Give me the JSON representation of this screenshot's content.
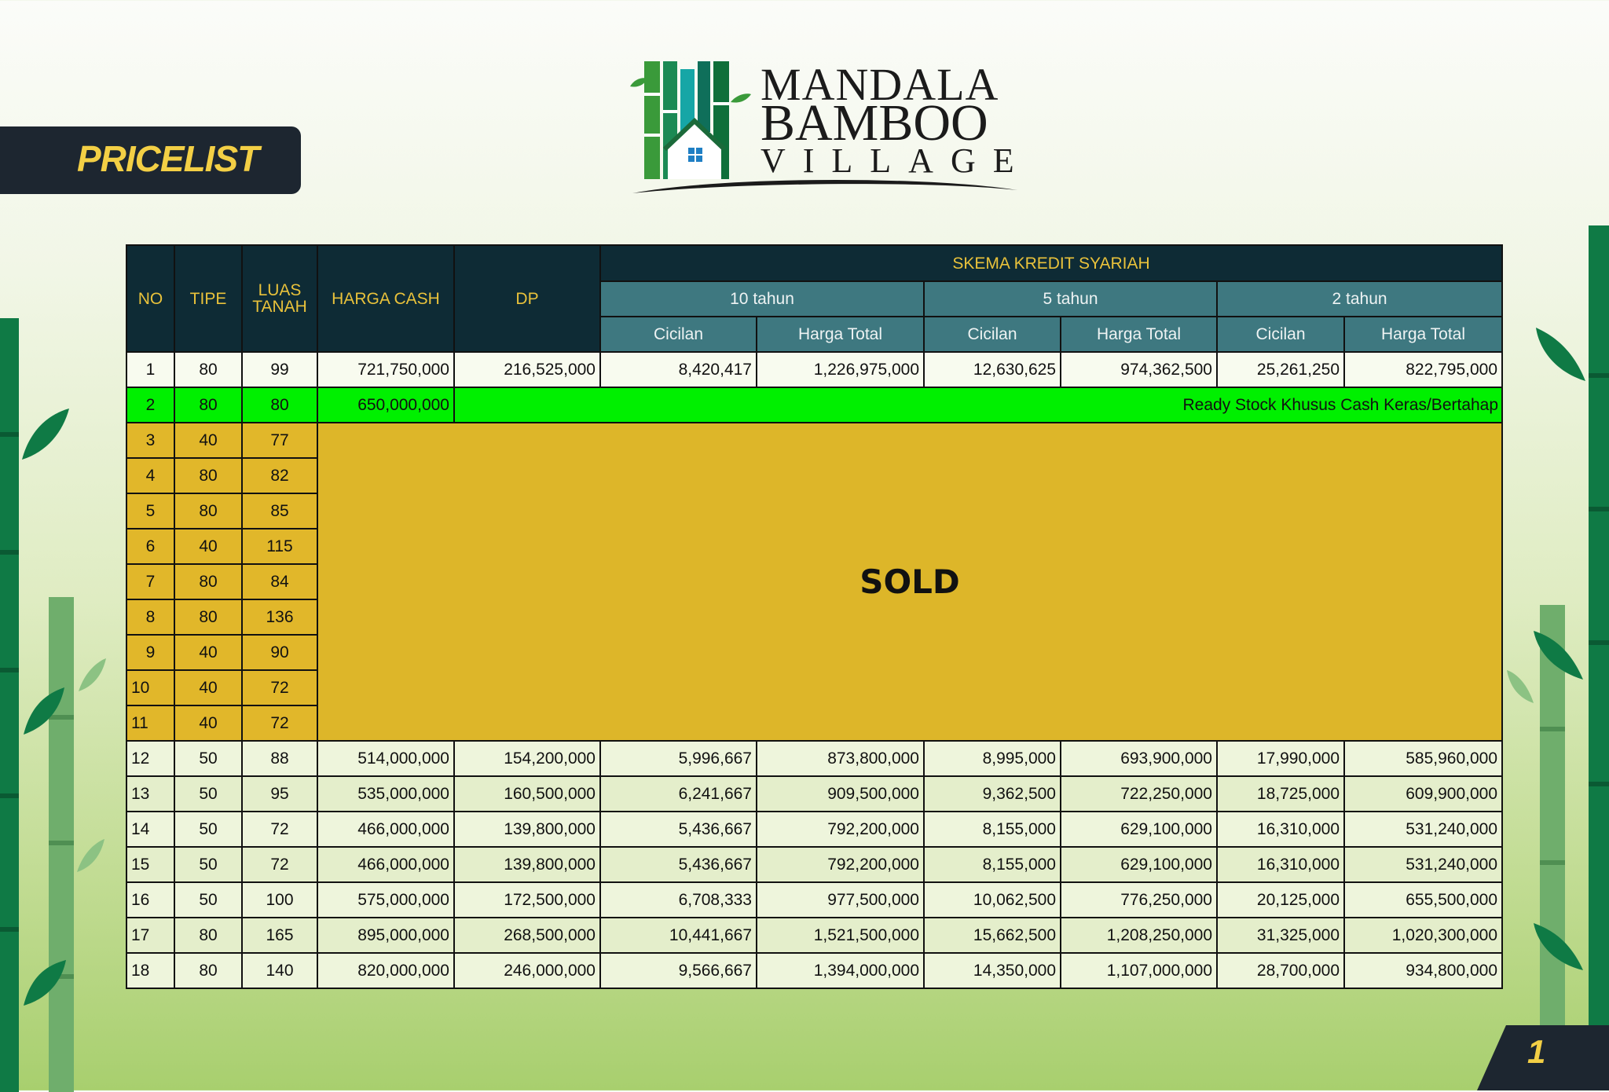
{
  "brand": {
    "line1": "MANDALA",
    "line2": "BAMBOO",
    "line3": "VILLAGE"
  },
  "tag": "PRICELIST",
  "page_number": "1",
  "colors": {
    "header_dark": "#0e2b35",
    "header_sub": "#3e7880",
    "header_text": "#e9c23b",
    "ready_stock_green": "#00f000",
    "sold_gold": "#ddb629",
    "tag_bg": "#1d2630",
    "tag_text": "#f3cf45"
  },
  "table": {
    "headers": {
      "no": "NO",
      "tipe": "TIPE",
      "luas_tanah": "LUAS TANAH",
      "harga_cash": "HARGA CASH",
      "dp": "DP",
      "skema": "SKEMA KREDIT SYARIAH",
      "t10": "10 tahun",
      "t5": "5 tahun",
      "t2": "2 tahun",
      "cicilan": "Cicilan",
      "harga_total": "Harga Total"
    },
    "row1": [
      "1",
      "80",
      "99",
      "721,750,000",
      "216,525,000",
      "8,420,417",
      "1,226,975,000",
      "12,630,625",
      "974,362,500",
      "25,261,250",
      "822,795,000"
    ],
    "row2": [
      "2",
      "80",
      "80",
      "650,000,000"
    ],
    "ready_stock_note": "Ready Stock Khusus Cash Keras/Bertahap",
    "sold_label": "SOLD",
    "sold_rows": [
      [
        "3",
        "40",
        "77"
      ],
      [
        "4",
        "80",
        "82"
      ],
      [
        "5",
        "80",
        "85"
      ],
      [
        "6",
        "40",
        "115"
      ],
      [
        "7",
        "80",
        "84"
      ],
      [
        "8",
        "80",
        "136"
      ],
      [
        "9",
        "40",
        "90"
      ],
      [
        "10",
        "40",
        "72"
      ],
      [
        "11",
        "40",
        "72"
      ]
    ],
    "rows": [
      [
        "12",
        "50",
        "88",
        "514,000,000",
        "154,200,000",
        "5,996,667",
        "873,800,000",
        "8,995,000",
        "693,900,000",
        "17,990,000",
        "585,960,000"
      ],
      [
        "13",
        "50",
        "95",
        "535,000,000",
        "160,500,000",
        "6,241,667",
        "909,500,000",
        "9,362,500",
        "722,250,000",
        "18,725,000",
        "609,900,000"
      ],
      [
        "14",
        "50",
        "72",
        "466,000,000",
        "139,800,000",
        "5,436,667",
        "792,200,000",
        "8,155,000",
        "629,100,000",
        "16,310,000",
        "531,240,000"
      ],
      [
        "15",
        "50",
        "72",
        "466,000,000",
        "139,800,000",
        "5,436,667",
        "792,200,000",
        "8,155,000",
        "629,100,000",
        "16,310,000",
        "531,240,000"
      ],
      [
        "16",
        "50",
        "100",
        "575,000,000",
        "172,500,000",
        "6,708,333",
        "977,500,000",
        "10,062,500",
        "776,250,000",
        "20,125,000",
        "655,500,000"
      ],
      [
        "17",
        "80",
        "165",
        "895,000,000",
        "268,500,000",
        "10,441,667",
        "1,521,500,000",
        "15,662,500",
        "1,208,250,000",
        "31,325,000",
        "1,020,300,000"
      ],
      [
        "18",
        "80",
        "140",
        "820,000,000",
        "246,000,000",
        "9,566,667",
        "1,394,000,000",
        "14,350,000",
        "1,107,000,000",
        "28,700,000",
        "934,800,000"
      ]
    ]
  }
}
